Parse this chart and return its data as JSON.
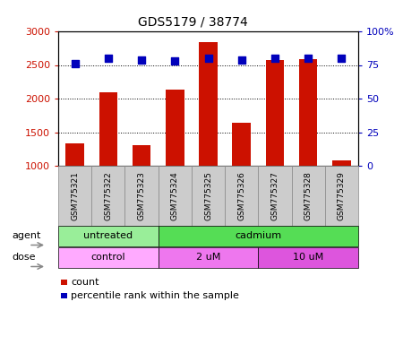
{
  "title": "GDS5179 / 38774",
  "samples": [
    "GSM775321",
    "GSM775322",
    "GSM775323",
    "GSM775324",
    "GSM775325",
    "GSM775326",
    "GSM775327",
    "GSM775328",
    "GSM775329"
  ],
  "counts": [
    1330,
    2090,
    1310,
    2140,
    2840,
    1640,
    2580,
    2590,
    1080
  ],
  "percentile_ranks": [
    76,
    80,
    79,
    78,
    80,
    79,
    80,
    80,
    80
  ],
  "ylim_left": [
    1000,
    3000
  ],
  "ylim_right": [
    0,
    100
  ],
  "yticks_left": [
    1000,
    1500,
    2000,
    2500,
    3000
  ],
  "yticks_right": [
    0,
    25,
    50,
    75,
    100
  ],
  "grid_lines": [
    1500,
    2000,
    2500
  ],
  "bar_color": "#cc1100",
  "dot_color": "#0000bb",
  "agent_groups": [
    {
      "label": "untreated",
      "start": 0,
      "end": 3,
      "color": "#99ee99"
    },
    {
      "label": "cadmium",
      "start": 3,
      "end": 9,
      "color": "#55dd55"
    }
  ],
  "dose_groups": [
    {
      "label": "control",
      "start": 0,
      "end": 3,
      "color": "#ffaaff"
    },
    {
      "label": "2 uM",
      "start": 3,
      "end": 6,
      "color": "#ee77ee"
    },
    {
      "label": "10 uM",
      "start": 6,
      "end": 9,
      "color": "#dd55dd"
    }
  ],
  "legend_count_color": "#cc1100",
  "legend_dot_color": "#0000bb",
  "axis_label_color_left": "#cc1100",
  "axis_label_color_right": "#0000bb",
  "bg_color": "#ffffff",
  "xlabel_row1": "agent",
  "xlabel_row2": "dose",
  "sample_box_color": "#cccccc",
  "sample_box_edge": "#888888"
}
